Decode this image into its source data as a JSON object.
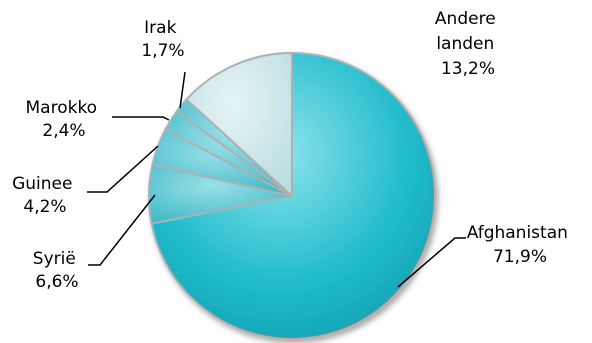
{
  "chart_data": {
    "type": "pie",
    "title": "",
    "slices": [
      {
        "label": "Afghanistan",
        "value": 71.9,
        "value_label": "71,9%"
      },
      {
        "label": "Syrië",
        "value": 6.6,
        "value_label": "6,6%"
      },
      {
        "label": "Guinee",
        "value": 4.2,
        "value_label": "4,2%"
      },
      {
        "label": "Marokko",
        "value": 2.4,
        "value_label": "2,4%"
      },
      {
        "label": "Irak",
        "value": 1.7,
        "value_label": "1,7%"
      },
      {
        "label": "Andere landen",
        "value": 13.2,
        "value_label": "13,2%"
      }
    ],
    "colors": {
      "afghanistan": "#1fb8c8",
      "small_slices": "#45c2d0",
      "others": "#c6e4e7",
      "separator": "#a8a8a8"
    }
  }
}
